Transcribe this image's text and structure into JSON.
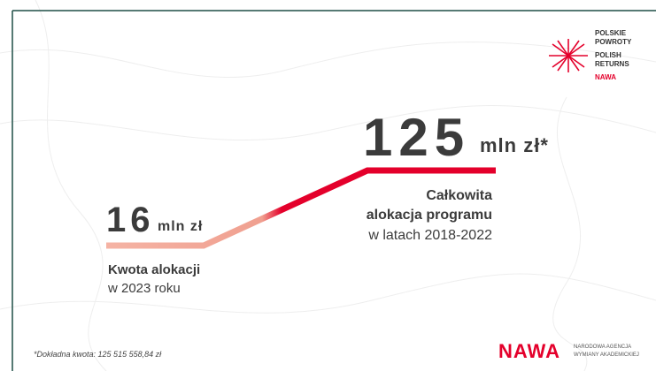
{
  "logo_top": {
    "lines": [
      "POLSKIE",
      "POWROTY",
      "POLISH",
      "RETURNS"
    ],
    "brand": "NAWA"
  },
  "total": {
    "amount": 125,
    "unit": "mln zł*",
    "caption": [
      "Całkowita",
      "alokacja programu",
      "w latach 2018-2022"
    ]
  },
  "year_2023": {
    "amount": 16,
    "unit": "mln zł",
    "caption": [
      "Kwota alokacji",
      "w 2023 roku"
    ]
  },
  "footnote": "*Dokładna kwota: 125 515 558,84 zł",
  "logo_bottom": {
    "brand": "NAWA",
    "lines": [
      "NARODOWA AGENCJA",
      "WYMIANY AKADEMICKIEJ"
    ]
  }
}
